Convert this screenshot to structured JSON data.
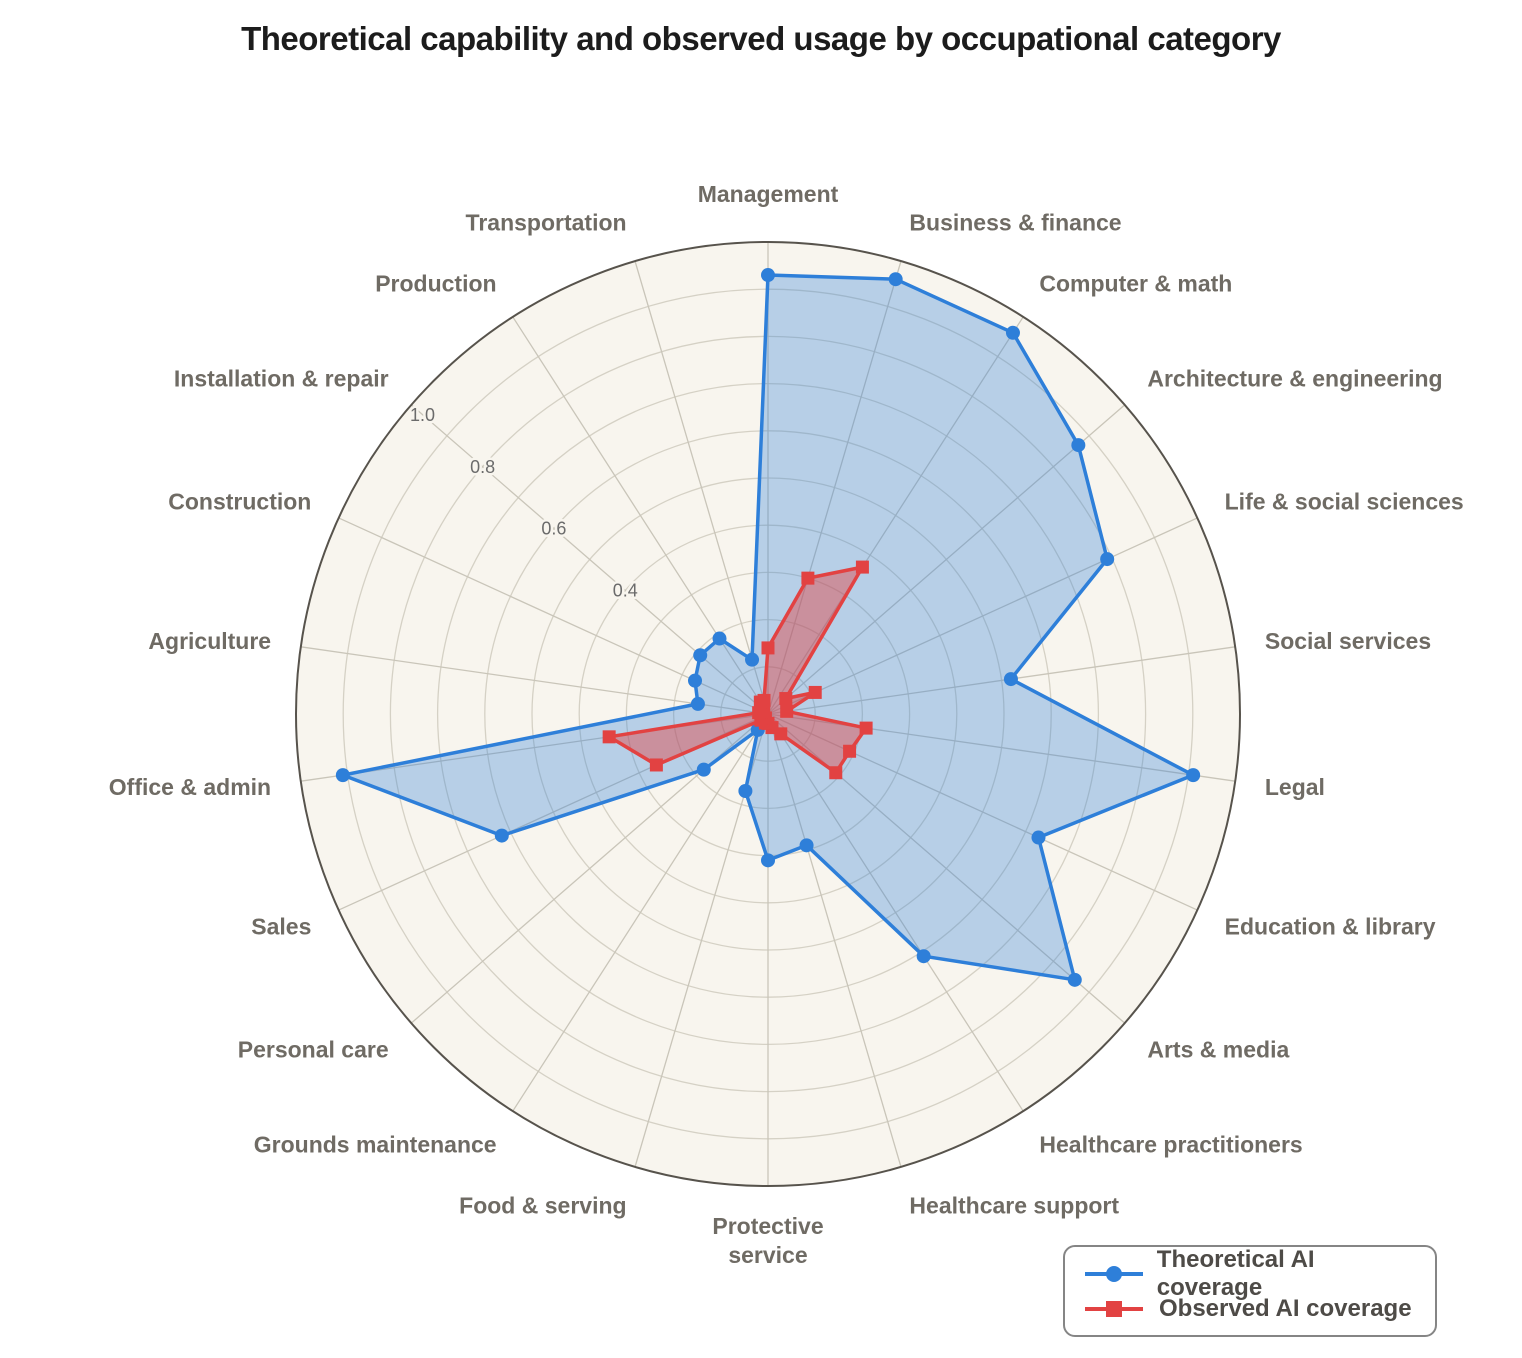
{
  "chart_data": {
    "type": "radar",
    "title": "Theoretical capability and observed usage by occupational category",
    "categories": [
      "Management",
      "Business & finance",
      "Computer & math",
      "Architecture & engineering",
      "Life & social sciences",
      "Social services",
      "Legal",
      "Education & library",
      "Arts & media",
      "Healthcare practitioners",
      "Healthcare support",
      "Protective service",
      "Food & serving",
      "Grounds maintenance",
      "Personal care",
      "Sales",
      "Office & admin",
      "Agriculture",
      "Construction",
      "Installation & repair",
      "Production",
      "Transportation"
    ],
    "series": [
      {
        "name": "Theoretical AI coverage",
        "marker": "circle",
        "color": "#2e7fd9",
        "fill_opacity": 0.32,
        "values": [
          0.93,
          0.96,
          0.96,
          0.87,
          0.79,
          0.52,
          0.91,
          0.63,
          0.86,
          0.61,
          0.29,
          0.31,
          0.17,
          0.04,
          0.18,
          0.62,
          0.91,
          0.15,
          0.17,
          0.19,
          0.19,
          0.12
        ]
      },
      {
        "name": "Observed AI coverage",
        "marker": "square",
        "color": "#e24242",
        "fill_opacity": 0.45,
        "values": [
          0.14,
          0.3,
          0.37,
          0.05,
          0.11,
          0.04,
          0.21,
          0.19,
          0.19,
          0.05,
          0.03,
          0.02,
          0.02,
          0.01,
          0.02,
          0.26,
          0.34,
          0.02,
          0.01,
          0.02,
          0.03,
          0.03
        ]
      }
    ],
    "r_axis": {
      "ticks": [
        0.4,
        0.6,
        0.8,
        1.0
      ],
      "tick_labels": [
        "0.4",
        "0.6",
        "0.8",
        "1.0"
      ],
      "max": 1.0,
      "grid_step": 0.1,
      "tick_angle_deg": 310.9
    },
    "layout": {
      "start_angle": "top",
      "direction": "clockwise",
      "grid": true,
      "legend_position": "bottom-right",
      "wrapped_label_index": 11
    }
  },
  "legend": {
    "items": [
      "Theoretical AI coverage",
      "Observed AI coverage"
    ]
  },
  "colors": {
    "theoretical": "#2e7fd9",
    "observed": "#e24242",
    "plot_background": "#f8f5ee",
    "ring_line": "#d5d1c5",
    "spoke_line": "#c9c5b9",
    "outer_ring": "#57534c",
    "category_label": "#6f6b64",
    "tick_label": "#6b6b6b",
    "title_text": "#1c1c1c",
    "legend_text": "#4e4b47",
    "legend_border": "#858585"
  }
}
